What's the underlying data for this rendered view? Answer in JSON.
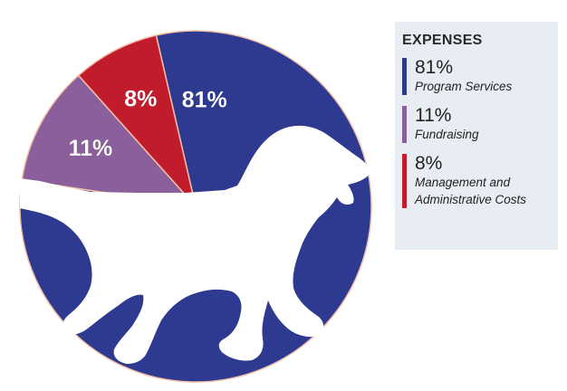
{
  "chart_data": {
    "type": "pie",
    "title": "EXPENSES",
    "categories": [
      "Program Services",
      "Fundraising",
      "Management and Administrative Costs"
    ],
    "values": [
      81,
      11,
      8
    ],
    "value_labels": [
      "81%",
      "11%",
      "8%"
    ],
    "colors": [
      "#2e3a8f",
      "#8b5f9b",
      "#c11c2c"
    ],
    "legend_placement": "right"
  },
  "legend": {
    "title": "EXPENSES",
    "items": [
      {
        "value": "81%",
        "name": "Program Services",
        "color": "#2e3a8f"
      },
      {
        "value": "11%",
        "name": "Fundraising",
        "color": "#8b5f9b"
      },
      {
        "value": "8%",
        "name": "Management and Administrative Costs",
        "color": "#c11c2c"
      }
    ]
  },
  "decoration": {
    "icon": "dog-silhouette-icon"
  }
}
